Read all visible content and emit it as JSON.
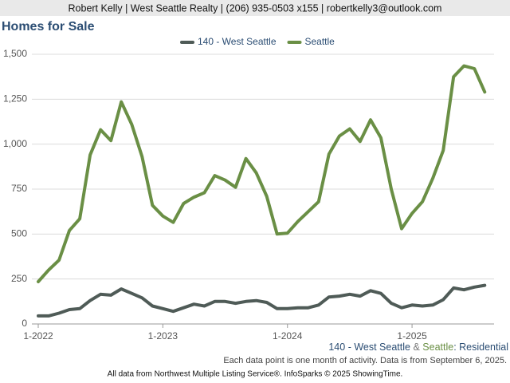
{
  "chart_data": {
    "type": "line",
    "header": "Robert Kelly | West Seattle Realty | (206) 935-0503 x155 | robertkelly3@outlook.com",
    "title": "Homes for Sale",
    "categories": [
      "1-2022",
      null,
      null,
      null,
      null,
      null,
      null,
      null,
      null,
      null,
      null,
      null,
      "1-2023",
      null,
      null,
      null,
      null,
      null,
      null,
      null,
      null,
      null,
      null,
      null,
      "1-2024",
      null,
      null,
      null,
      null,
      null,
      null,
      null,
      null,
      null,
      null,
      null,
      "1-2025",
      null,
      null,
      null,
      null,
      null,
      null,
      null
    ],
    "series": [
      {
        "name": "140 - West Seattle",
        "color": "#4f5b57",
        "values": [
          45,
          45,
          60,
          80,
          85,
          130,
          165,
          160,
          195,
          170,
          145,
          100,
          85,
          70,
          90,
          110,
          100,
          125,
          125,
          115,
          125,
          130,
          120,
          85,
          85,
          90,
          90,
          105,
          150,
          155,
          165,
          155,
          185,
          170,
          115,
          90,
          105,
          100,
          105,
          135,
          200,
          190,
          205,
          215
        ]
      },
      {
        "name": "Seattle",
        "color": "#6a8f45",
        "values": [
          235,
          300,
          355,
          520,
          585,
          940,
          1080,
          1020,
          1235,
          1110,
          930,
          660,
          600,
          565,
          670,
          705,
          730,
          825,
          800,
          760,
          920,
          840,
          710,
          500,
          505,
          570,
          625,
          680,
          945,
          1045,
          1085,
          1015,
          1135,
          1035,
          750,
          530,
          615,
          680,
          810,
          965,
          1375,
          1435,
          1420,
          1290
        ]
      }
    ],
    "ylim": [
      0,
      1500
    ],
    "yticks": [
      0,
      250,
      500,
      750,
      {
        "value": 1000,
        "label": "1,000"
      },
      {
        "value": 1250,
        "label": "1,250"
      },
      {
        "value": 1500,
        "label": "1,500"
      }
    ],
    "grid": true,
    "legend": "top",
    "source": [
      "140 - West Seattle",
      "&",
      "Seattle",
      ": Residential"
    ],
    "footnote": "Each data point is one month of activity. Data is from September 6, 2025.",
    "credit": "All data from Northwest Multiple Listing Service®. InfoSparks © 2025 ShowingTime."
  }
}
